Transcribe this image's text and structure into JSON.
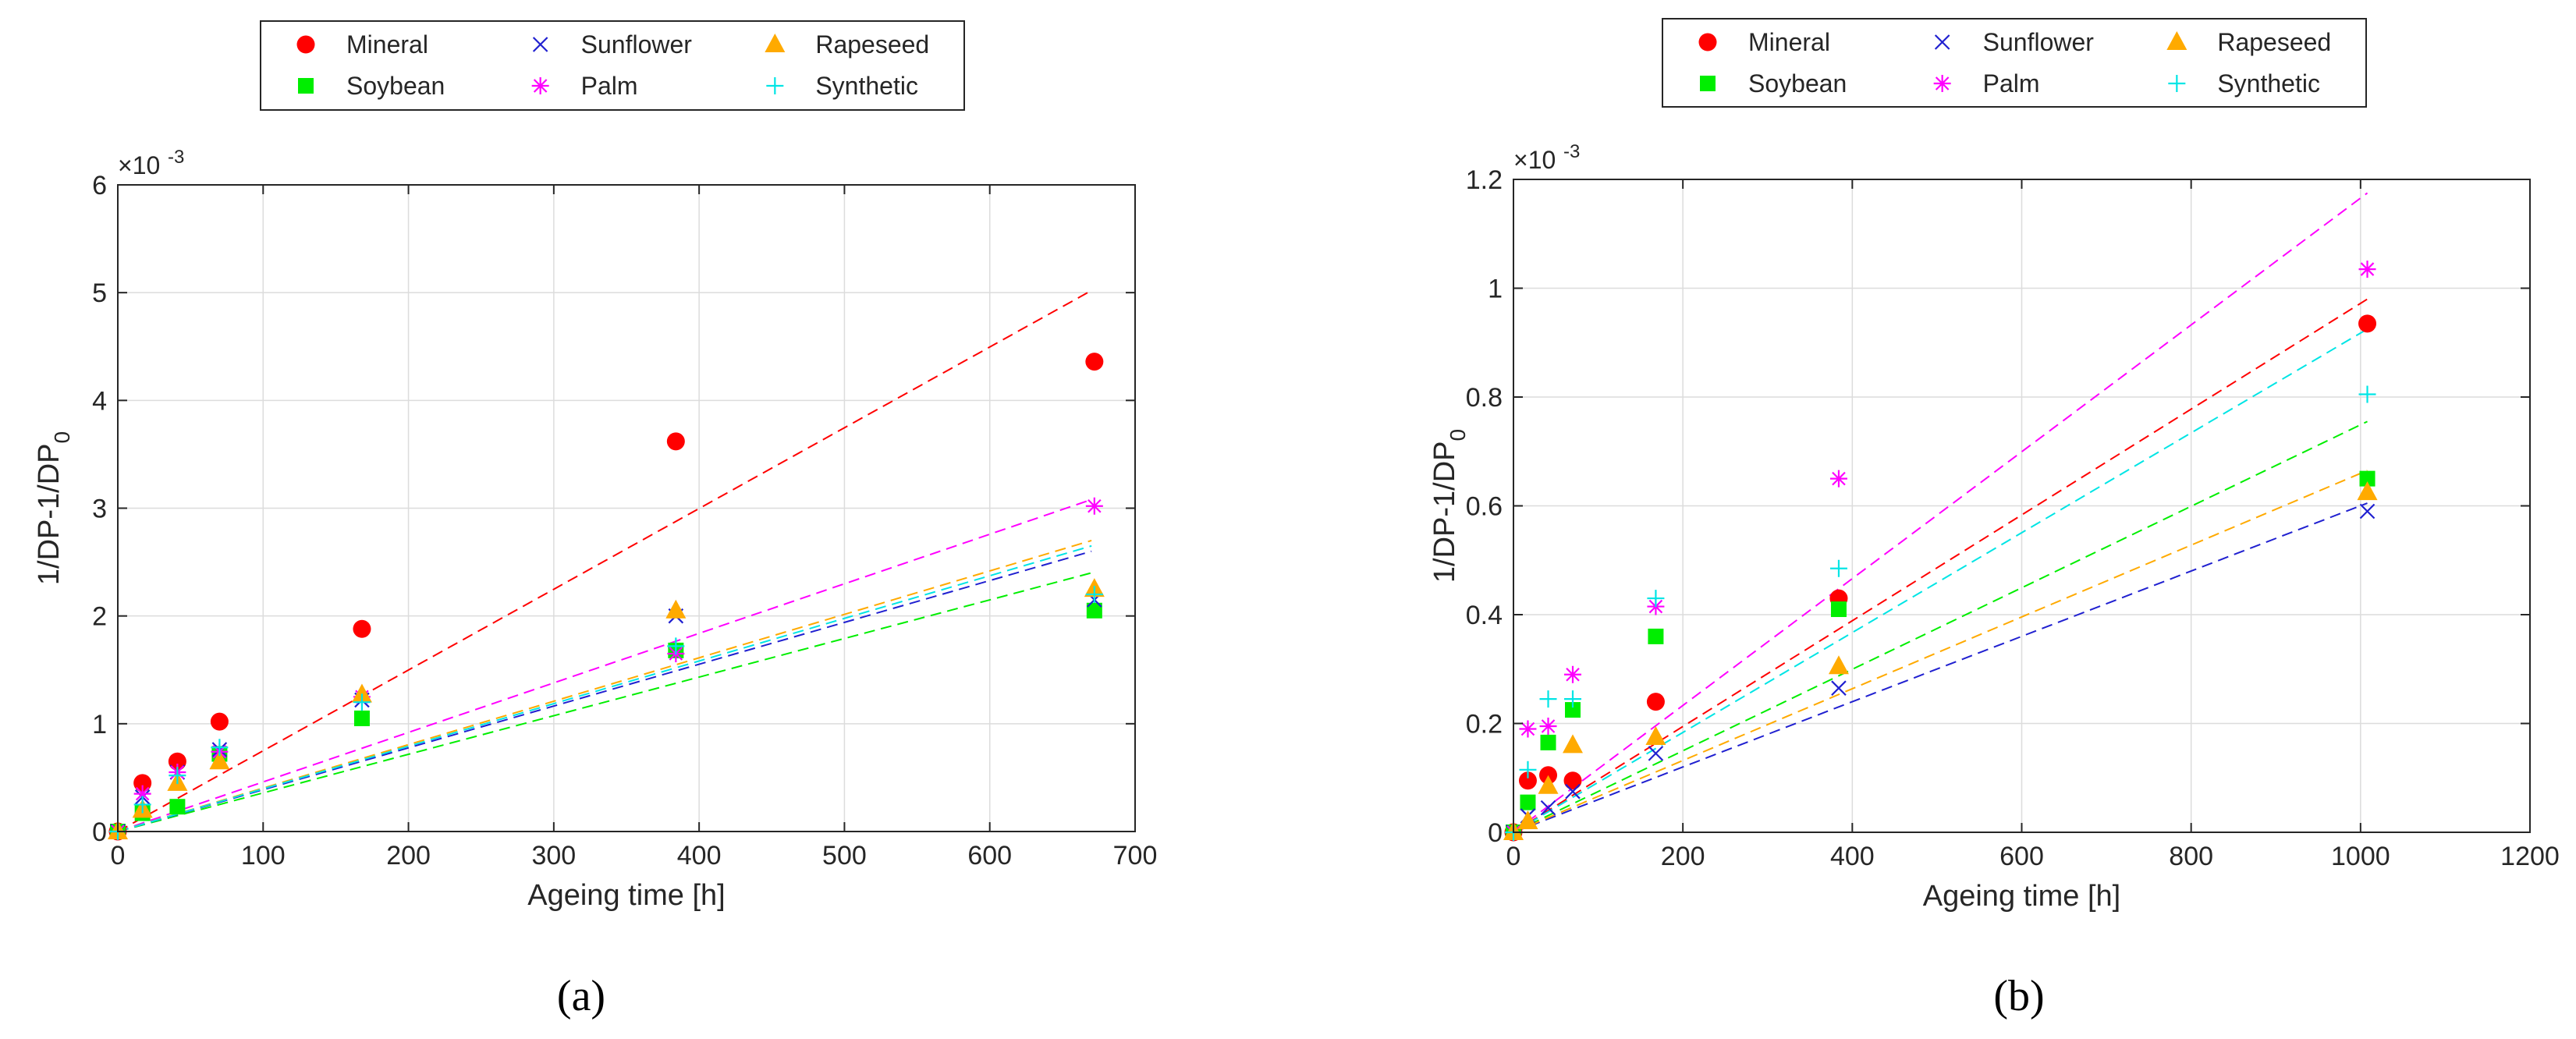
{
  "figure": {
    "description_labels": [
      "(a)",
      "(b)"
    ]
  },
  "styles": {
    "Mineral": {
      "color": "#ff0000",
      "marker": "circle"
    },
    "Soybean": {
      "color": "#00ee00",
      "marker": "square"
    },
    "Sunflower": {
      "color": "#2020d0",
      "marker": "x"
    },
    "Palm": {
      "color": "#ff00ff",
      "marker": "star"
    },
    "Rapeseed": {
      "color": "#ffaa00",
      "marker": "triangle"
    },
    "Synthetic": {
      "color": "#00e5e5",
      "marker": "plus"
    }
  },
  "legend_order": [
    [
      "Mineral",
      "Sunflower",
      "Rapeseed"
    ],
    [
      "Soybean",
      "Palm",
      "Synthetic"
    ]
  ],
  "chart_data": [
    {
      "type": "scatter",
      "panel": "(a)",
      "title": "",
      "xlabel": "Ageing time [h]",
      "ylabel_main": "1/DP-1/DP",
      "ylabel_sub": "0",
      "y_exponent_label": "×10",
      "y_exponent": "-3",
      "xlim": [
        0,
        700
      ],
      "ylim": [
        0,
        6
      ],
      "xticks": [
        0,
        100,
        200,
        300,
        400,
        500,
        600,
        700
      ],
      "yticks": [
        0,
        1,
        2,
        3,
        4,
        5,
        6
      ],
      "grid": true,
      "legend": "top",
      "fit_end_x": 670,
      "series": [
        {
          "name": "Mineral",
          "x": [
            0,
            17,
            41,
            70,
            168,
            384,
            672
          ],
          "y": [
            0,
            0.45,
            0.65,
            1.02,
            1.88,
            3.62,
            4.36
          ],
          "fit_end_y": 5.02
        },
        {
          "name": "Soybean",
          "x": [
            0,
            17,
            41,
            70,
            168,
            384,
            672
          ],
          "y": [
            0,
            0.17,
            0.23,
            0.72,
            1.05,
            1.68,
            2.05
          ],
          "fit_end_y": 2.4
        },
        {
          "name": "Sunflower",
          "x": [
            0,
            17,
            41,
            70,
            168,
            384,
            672
          ],
          "y": [
            0,
            0.32,
            0.55,
            0.76,
            1.22,
            2.0,
            2.15
          ],
          "fit_end_y": 2.6
        },
        {
          "name": "Palm",
          "x": [
            0,
            17,
            41,
            70,
            168,
            384,
            672
          ],
          "y": [
            0,
            0.35,
            0.55,
            0.74,
            1.25,
            1.65,
            3.02
          ],
          "fit_end_y": 3.08
        },
        {
          "name": "Rapeseed",
          "x": [
            0,
            17,
            41,
            70,
            168,
            384,
            672
          ],
          "y": [
            0,
            0.2,
            0.45,
            0.65,
            1.27,
            2.05,
            2.25
          ],
          "fit_end_y": 2.7
        },
        {
          "name": "Synthetic",
          "x": [
            0,
            17,
            41,
            70,
            168,
            384,
            672
          ],
          "y": [
            0,
            0.25,
            0.52,
            0.78,
            1.2,
            1.72,
            2.2
          ],
          "fit_end_y": 2.65
        }
      ]
    },
    {
      "type": "scatter",
      "panel": "(b)",
      "title": "",
      "xlabel": "Ageing time [h]",
      "ylabel_main": "1/DP-1/DP",
      "ylabel_sub": "0",
      "y_exponent_label": "×10",
      "y_exponent": "-3",
      "xlim": [
        0,
        1200
      ],
      "ylim": [
        0,
        1.2
      ],
      "xticks": [
        0,
        200,
        400,
        600,
        800,
        1000,
        1200
      ],
      "yticks": [
        0,
        0.2,
        0.4,
        0.6,
        0.8,
        1,
        1.2
      ],
      "grid": true,
      "legend": "top",
      "fit_end_x": 1008,
      "series": [
        {
          "name": "Mineral",
          "x": [
            0,
            17,
            41,
            70,
            168,
            384,
            1008
          ],
          "y": [
            0,
            0.095,
            0.105,
            0.095,
            0.24,
            0.43,
            0.935
          ],
          "fit_end_y": 0.98
        },
        {
          "name": "Soybean",
          "x": [
            0,
            17,
            41,
            70,
            168,
            384,
            1008
          ],
          "y": [
            0,
            0.055,
            0.165,
            0.225,
            0.36,
            0.41,
            0.65
          ],
          "fit_end_y": 0.755
        },
        {
          "name": "Sunflower",
          "x": [
            0,
            17,
            41,
            70,
            168,
            384,
            1008
          ],
          "y": [
            0,
            0.03,
            0.045,
            0.075,
            0.145,
            0.265,
            0.59
          ],
          "fit_end_y": 0.605
        },
        {
          "name": "Palm",
          "x": [
            0,
            17,
            41,
            70,
            168,
            384,
            1008
          ],
          "y": [
            0,
            0.19,
            0.195,
            0.29,
            0.415,
            0.65,
            1.035
          ],
          "fit_end_y": 1.175
        },
        {
          "name": "Rapeseed",
          "x": [
            0,
            17,
            41,
            70,
            168,
            384,
            1008
          ],
          "y": [
            0,
            0.02,
            0.085,
            0.16,
            0.175,
            0.305,
            0.625
          ],
          "fit_end_y": 0.665
        },
        {
          "name": "Synthetic",
          "x": [
            0,
            17,
            41,
            70,
            168,
            384,
            1008
          ],
          "y": [
            0,
            0.115,
            0.245,
            0.245,
            0.43,
            0.485,
            0.805
          ],
          "fit_end_y": 0.925
        }
      ]
    }
  ]
}
